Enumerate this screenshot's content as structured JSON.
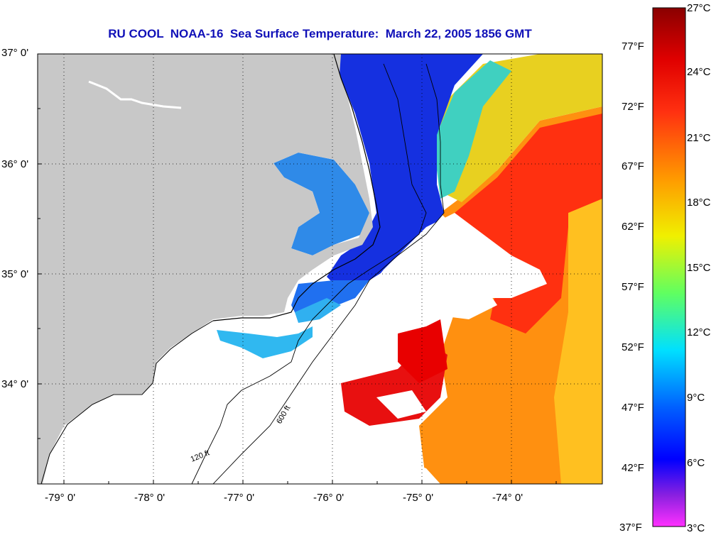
{
  "title": "RU COOL  NOAA-16  Sea Surface Temperature:  March 22, 2005 1856 GMT",
  "map": {
    "lat_labels": [
      "37° 0'",
      "36° 0'",
      "35° 0'",
      "34° 0'"
    ],
    "lon_labels": [
      "-79° 0'",
      "-78° 0'",
      "-77° 0'",
      "-76° 0'",
      "-75° 0'",
      "-74° 0'"
    ],
    "contour_labels": [
      "120 ft",
      "600 ft"
    ],
    "colors": {
      "land": "#c8c8c8",
      "cloud": "#ffffff",
      "cold": "#1530e0",
      "warm": "#ff3010"
    }
  },
  "colorbar": {
    "celsius": [
      "27°C",
      "24°C",
      "21°C",
      "18°C",
      "15°C",
      "12°C",
      "9°C",
      "6°C",
      "3°C"
    ],
    "fahrenheit": [
      "77°F",
      "72°F",
      "67°F",
      "62°F",
      "57°F",
      "52°F",
      "47°F",
      "42°F",
      "37°F"
    ]
  }
}
